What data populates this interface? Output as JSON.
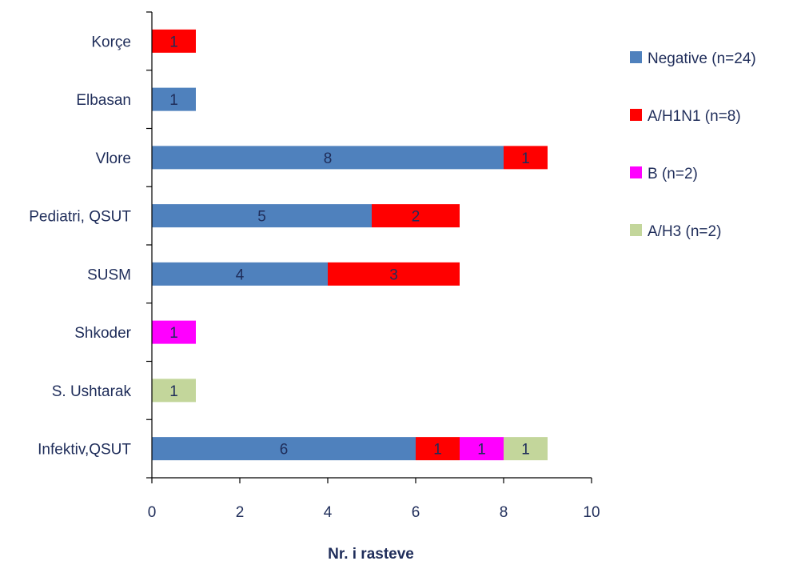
{
  "chart_data": {
    "type": "bar",
    "orientation": "horizontal",
    "stacked": true,
    "categories": [
      "Korçe",
      "Elbasan",
      "Vlore",
      "Pediatri, QSUT",
      "SUSM",
      "Shkoder",
      "S. Ushtarak",
      "Infektiv,QSUT"
    ],
    "series": [
      {
        "name": "Negative (n=24)",
        "color": "#4f81bd",
        "values": [
          0,
          1,
          8,
          5,
          4,
          0,
          0,
          6
        ]
      },
      {
        "name": "A/H1N1 (n=8)",
        "color": "#ff0000",
        "values": [
          1,
          0,
          1,
          2,
          3,
          0,
          0,
          1
        ]
      },
      {
        "name": "B (n=2)",
        "color": "#ff00ff",
        "values": [
          0,
          0,
          0,
          0,
          0,
          1,
          0,
          1
        ]
      },
      {
        "name": "A/H3 (n=2)",
        "color": "#c3d69b",
        "values": [
          0,
          0,
          0,
          0,
          0,
          0,
          1,
          1
        ]
      }
    ],
    "xlabel": "Nr. i rasteve",
    "xlim": [
      0,
      10
    ],
    "xticks": [
      0,
      2,
      4,
      6,
      8,
      10
    ],
    "data_labels": true,
    "grid": false,
    "legend_position": "right"
  }
}
